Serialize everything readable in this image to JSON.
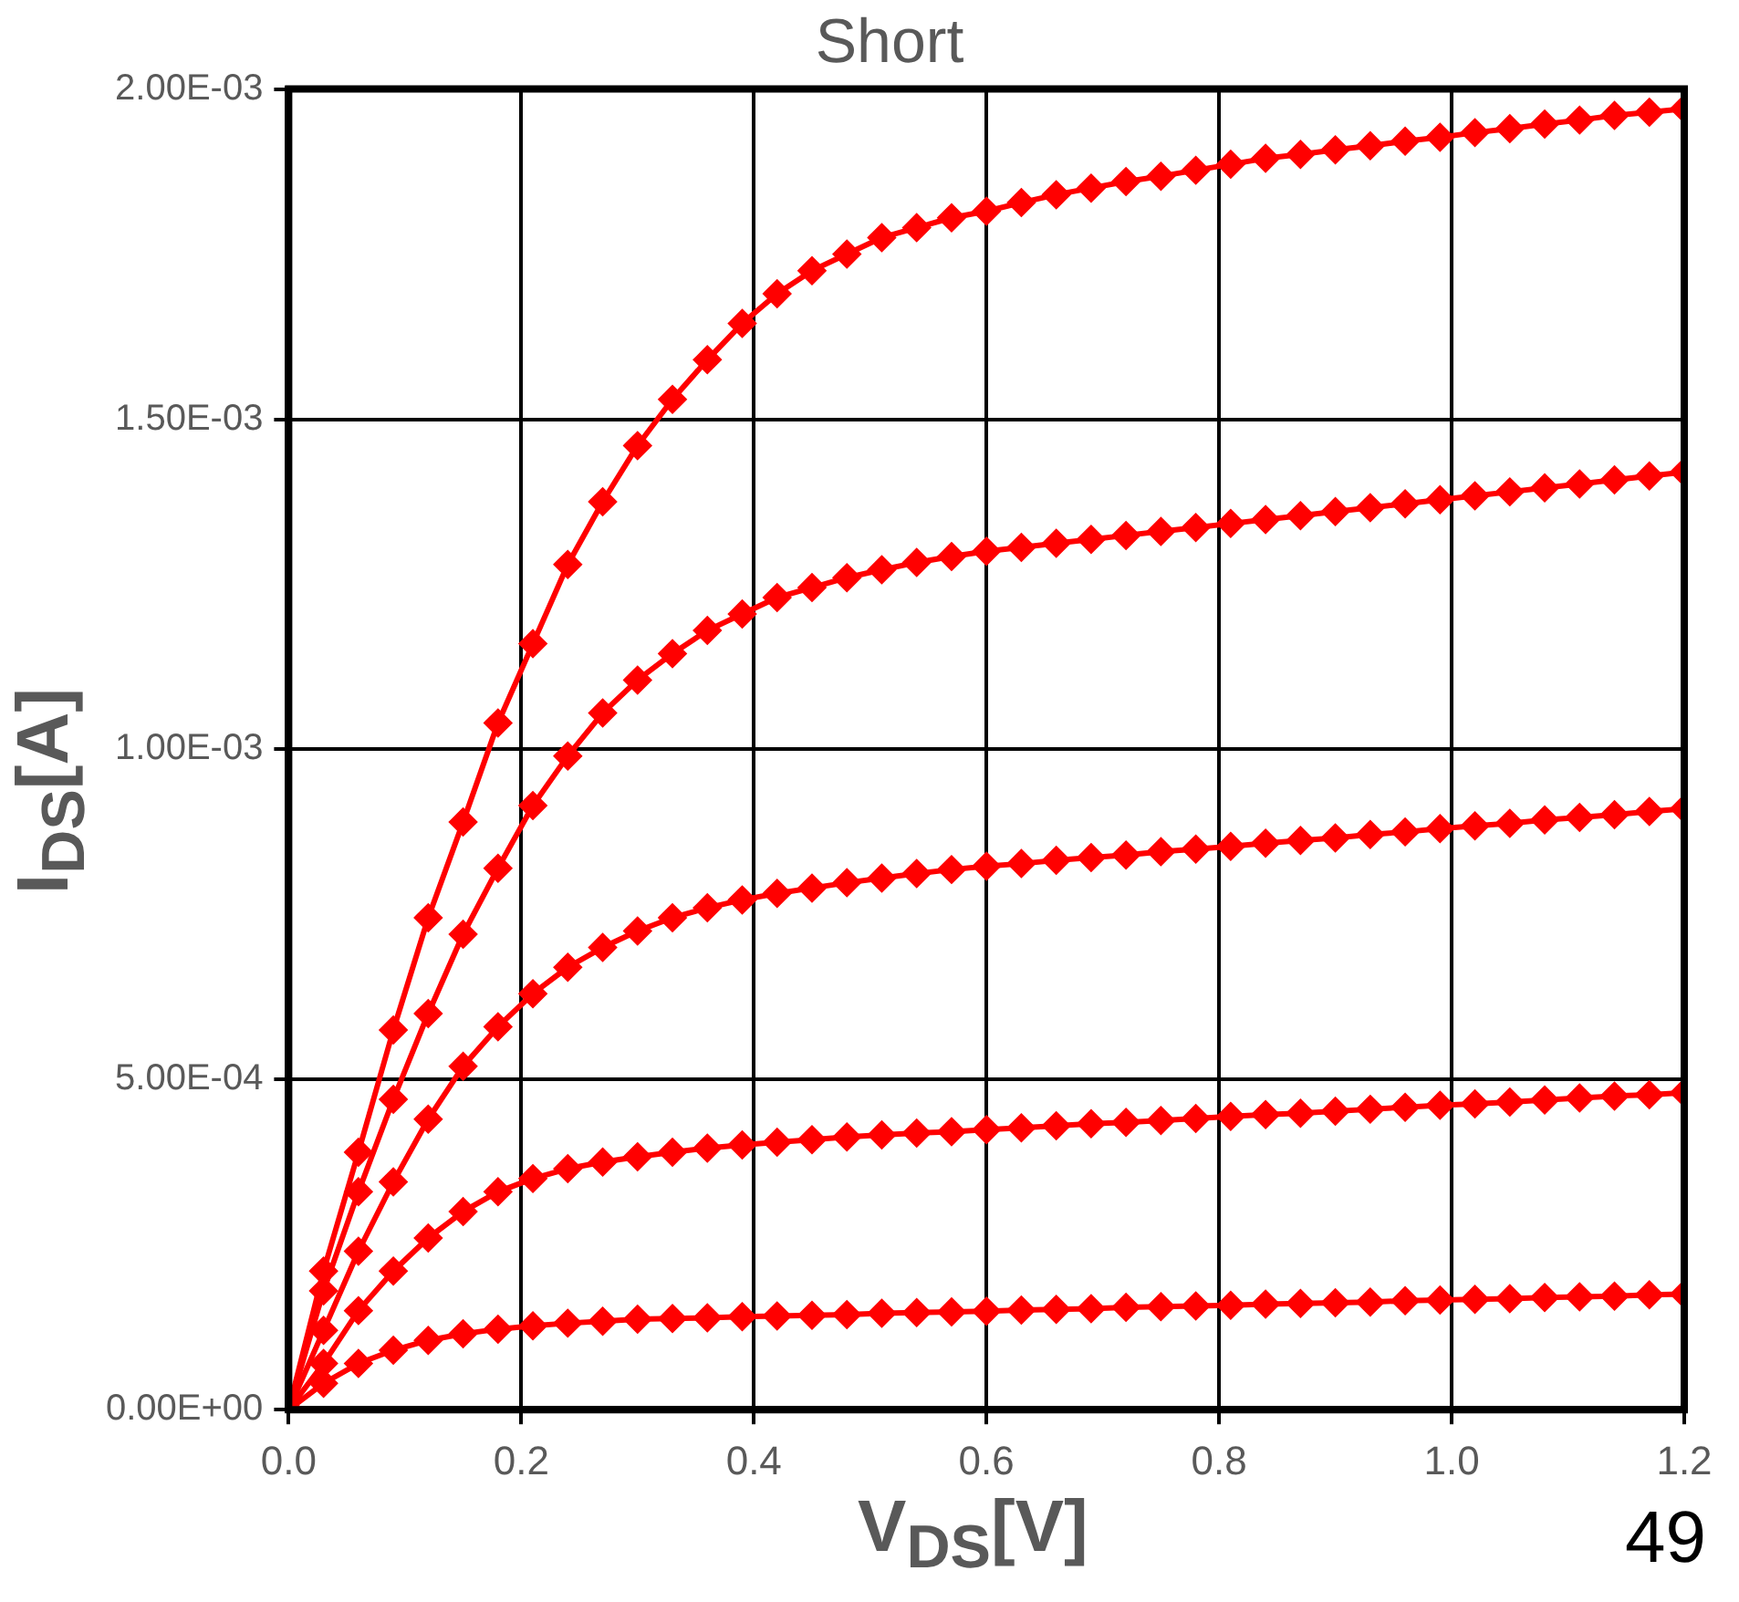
{
  "chart_data": {
    "type": "line",
    "title": "Short",
    "xlabel": "V$_{DS}$[V]",
    "ylabel": "I$_{DS}$[A]",
    "x": [
      0,
      0.03,
      0.06,
      0.09,
      0.12,
      0.15,
      0.18,
      0.21,
      0.24,
      0.27,
      0.3,
      0.33,
      0.36,
      0.39,
      0.42,
      0.45,
      0.48,
      0.51,
      0.54,
      0.57,
      0.6,
      0.63,
      0.66,
      0.69,
      0.72,
      0.75,
      0.78,
      0.81,
      0.84,
      0.87,
      0.9,
      0.93,
      0.96,
      0.99,
      1.02,
      1.05,
      1.08,
      1.11,
      1.14,
      1.17,
      1.2
    ],
    "series": [
      {
        "color": "#ff0000",
        "values": [
          0,
          4e-05,
          7e-05,
          9e-05,
          0.000105,
          0.000115,
          0.000122,
          0.000127,
          0.000131,
          0.000134,
          0.000137,
          0.000138,
          0.000139,
          0.000141,
          0.000142,
          0.000143,
          0.000144,
          0.000146,
          0.000147,
          0.000148,
          0.000149,
          0.000151,
          0.000152,
          0.000153,
          0.000155,
          0.000156,
          0.000157,
          0.000158,
          0.00016,
          0.000161,
          0.000162,
          0.000163,
          0.000165,
          0.000166,
          0.000167,
          0.000168,
          0.00017,
          0.000171,
          0.000172,
          0.000174,
          0.000175
        ]
      },
      {
        "color": "#ff0000",
        "values": [
          0,
          7e-05,
          0.00015,
          0.00021,
          0.00026,
          0.0003,
          0.00033,
          0.00035,
          0.000365,
          0.000375,
          0.000383,
          0.00039,
          0.000396,
          0.000401,
          0.000405,
          0.000409,
          0.000413,
          0.000416,
          0.000419,
          0.000421,
          0.000424,
          0.000427,
          0.00043,
          0.000433,
          0.000435,
          0.000438,
          0.000441,
          0.000444,
          0.000447,
          0.000449,
          0.000452,
          0.000455,
          0.000458,
          0.000461,
          0.000463,
          0.000466,
          0.000469,
          0.000472,
          0.000475,
          0.000477,
          0.00048
        ]
      },
      {
        "color": "#ff0000",
        "values": [
          0,
          0.00012,
          0.00024,
          0.000345,
          0.00044,
          0.00052,
          0.00058,
          0.00063,
          0.00067,
          0.0007,
          0.000725,
          0.000745,
          0.00076,
          0.000772,
          0.000782,
          0.00079,
          0.000798,
          0.000805,
          0.000812,
          0.000818,
          0.000823,
          0.000827,
          0.000832,
          0.000836,
          0.00084,
          0.000845,
          0.000849,
          0.000853,
          0.000858,
          0.000862,
          0.000866,
          0.000871,
          0.000875,
          0.00088,
          0.000884,
          0.000888,
          0.000893,
          0.000897,
          0.000901,
          0.000906,
          0.00091
        ]
      },
      {
        "color": "#ff0000",
        "values": [
          0,
          0.00018,
          0.00033,
          0.00047,
          0.0006,
          0.00072,
          0.00082,
          0.000915,
          0.00099,
          0.001055,
          0.001105,
          0.001145,
          0.00118,
          0.001205,
          0.00123,
          0.001245,
          0.00126,
          0.001272,
          0.001283,
          0.001292,
          0.0013,
          0.001306,
          0.001312,
          0.001318,
          0.001324,
          0.00133,
          0.001336,
          0.001342,
          0.001348,
          0.001354,
          0.00136,
          0.001366,
          0.001372,
          0.001378,
          0.001384,
          0.00139,
          0.001396,
          0.001402,
          0.001408,
          0.001414,
          0.00142
        ]
      },
      {
        "color": "#ff0000",
        "values": [
          0,
          0.00021,
          0.00039,
          0.000575,
          0.000745,
          0.00089,
          0.00104,
          0.00116,
          0.00128,
          0.001375,
          0.00146,
          0.00153,
          0.00159,
          0.001645,
          0.00169,
          0.001725,
          0.00175,
          0.001775,
          0.00179,
          0.001805,
          0.001815,
          0.001828,
          0.00184,
          0.00185,
          0.00186,
          0.001868,
          0.001877,
          0.001886,
          0.001895,
          0.001901,
          0.001908,
          0.001914,
          0.001921,
          0.001927,
          0.001934,
          0.00194,
          0.001947,
          0.001953,
          0.00196,
          0.001965,
          0.00197
        ]
      }
    ],
    "xlim": [
      0,
      1.2
    ],
    "xticks": [
      {
        "value": 0,
        "label": "0.0"
      },
      0.2,
      0.4,
      0.6,
      0.8,
      {
        "value": 1,
        "label": "1.0"
      },
      1.2
    ],
    "ylim": [
      0,
      0.002
    ],
    "yticks": [
      {
        "value": 0,
        "label": "0.00E+00"
      },
      {
        "value": 0.0005,
        "label": "5.00E-04"
      },
      {
        "value": 0.001,
        "label": "1.00E-03"
      },
      {
        "value": 0.0015,
        "label": "1.50E-03"
      },
      {
        "value": 0.002,
        "label": "2.00E-03"
      }
    ],
    "grid": true,
    "legend": false,
    "marker": "diamond",
    "line_style": "solid",
    "annotations": [
      "49"
    ]
  }
}
